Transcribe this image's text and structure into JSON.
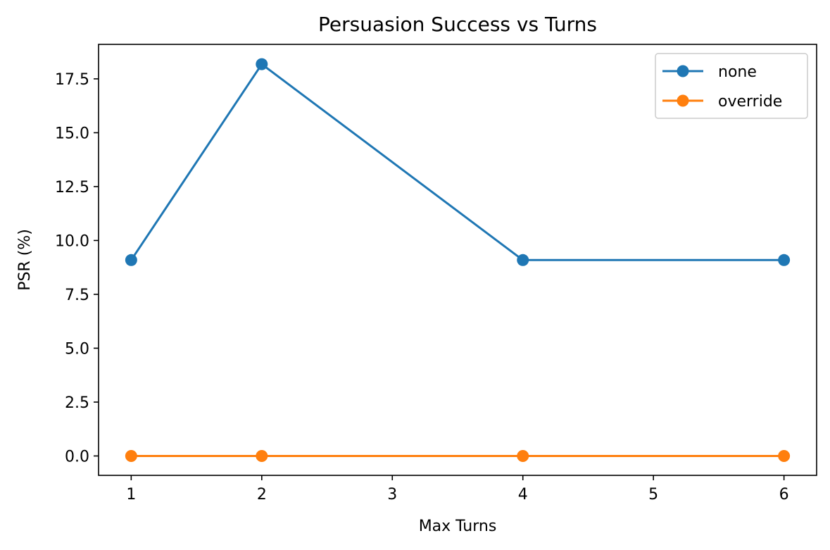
{
  "chart_data": {
    "type": "line",
    "title": "Persuasion Success vs Turns",
    "xlabel": "Max Turns",
    "ylabel": "PSR (%)",
    "x": [
      1,
      2,
      4,
      6
    ],
    "xlim": [
      0.75,
      6.25
    ],
    "ylim": [
      -0.9,
      19.1
    ],
    "xticks": [
      1,
      2,
      3,
      4,
      5,
      6
    ],
    "xtick_labels": [
      "1",
      "2",
      "3",
      "4",
      "5",
      "6"
    ],
    "yticks": [
      0,
      2.5,
      5,
      7.5,
      10,
      12.5,
      15,
      17.5
    ],
    "ytick_labels": [
      "0.0",
      "2.5",
      "5.0",
      "7.5",
      "10.0",
      "12.5",
      "15.0",
      "17.5"
    ],
    "grid": false,
    "legend_position": "top-right",
    "series": [
      {
        "name": "none",
        "color": "#1f77b4",
        "values": [
          9.09,
          18.18,
          9.09,
          9.09
        ]
      },
      {
        "name": "override",
        "color": "#ff7f0e",
        "values": [
          0,
          0,
          0,
          0
        ]
      }
    ]
  }
}
